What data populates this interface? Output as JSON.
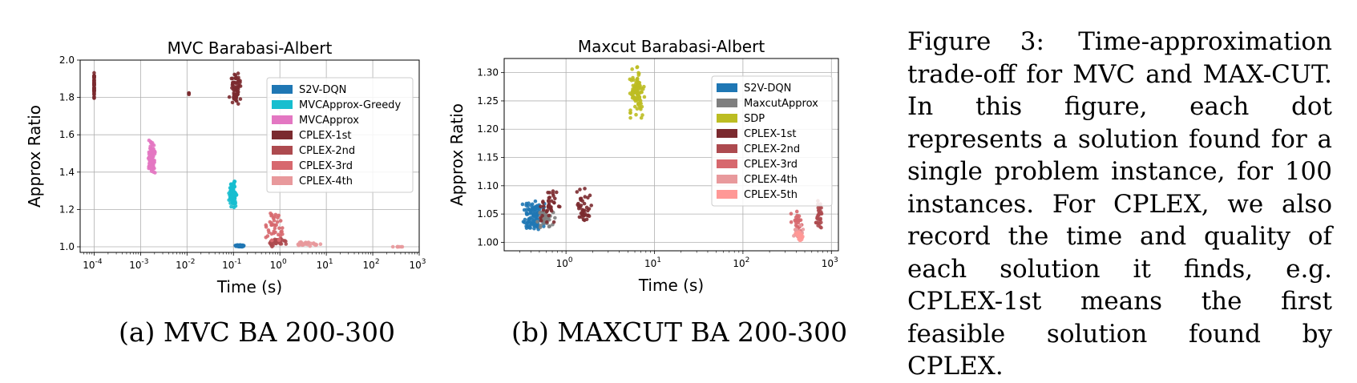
{
  "chart_data": [
    {
      "type": "scatter",
      "title": "MVC Barabasi-Albert",
      "xlabel": "Time (s)",
      "ylabel": "Approx Ratio",
      "xscale": "log",
      "xlim": [
        5e-05,
        1000
      ],
      "ylim": [
        0.97,
        2.0
      ],
      "xticks": [
        0.0001,
        0.001,
        0.01,
        0.1,
        1,
        10,
        100,
        1000
      ],
      "xtick_exponents": [
        "-4",
        "-3",
        "-2",
        "-1",
        "0",
        "1",
        "2",
        "3"
      ],
      "yticks": [
        "1.0",
        "1.2",
        "1.4",
        "1.6",
        "1.8",
        "2.0"
      ],
      "grid": true,
      "legend_position": "upper-right",
      "series": [
        {
          "name": "S2V-DQN",
          "color": "#1f77b4",
          "clusters": [
            {
              "x": [
                0.11,
                0.17
              ],
              "y": [
                1.0,
                1.01
              ],
              "n": 100
            }
          ]
        },
        {
          "name": "MVCApprox-Greedy",
          "color": "#17becf",
          "clusters": [
            {
              "x": [
                0.08,
                0.12
              ],
              "y": [
                1.21,
                1.35
              ],
              "n": 100
            }
          ]
        },
        {
          "name": "MVCApprox",
          "color": "#e377c2",
          "clusters": [
            {
              "x": [
                0.0014,
                0.0021
              ],
              "y": [
                1.38,
                1.57
              ],
              "n": 100
            }
          ]
        },
        {
          "name": "CPLEX-1st",
          "color": "#7b2a2f",
          "clusters": [
            {
              "x": [
                0.0001,
                0.0001
              ],
              "y": [
                1.76,
                1.95
              ],
              "n": 60
            },
            {
              "x": [
                0.011,
                0.011
              ],
              "y": [
                1.8,
                1.84
              ],
              "n": 3
            },
            {
              "x": [
                0.08,
                0.16
              ],
              "y": [
                1.75,
                1.95
              ],
              "n": 60
            }
          ]
        },
        {
          "name": "CPLEX-2nd",
          "color": "#ad4a4f",
          "clusters": [
            {
              "x": [
                0.5,
                1.4
              ],
              "y": [
                1.0,
                1.05
              ],
              "n": 40
            }
          ]
        },
        {
          "name": "CPLEX-3rd",
          "color": "#d7686e",
          "clusters": [
            {
              "x": [
                0.5,
                1.2
              ],
              "y": [
                1.0,
                1.22
              ],
              "n": 40
            }
          ]
        },
        {
          "name": "CPLEX-4th",
          "color": "#e8999c",
          "clusters": [
            {
              "x": [
                2.0,
                8.0
              ],
              "y": [
                1.0,
                1.03
              ],
              "n": 30
            },
            {
              "x": [
                250,
                600
              ],
              "y": [
                1.0,
                1.0
              ],
              "n": 8
            }
          ]
        }
      ]
    },
    {
      "type": "scatter",
      "title": "Maxcut Barabasi-Albert",
      "xlabel": "Time (s)",
      "ylabel": "Approx Ratio",
      "xscale": "log",
      "xlim": [
        0.2,
        1200
      ],
      "ylim": [
        0.985,
        1.325
      ],
      "xticks": [
        1,
        10,
        100,
        1000
      ],
      "xtick_exponents": [
        "0",
        "1",
        "2",
        "3"
      ],
      "yticks": [
        "1.00",
        "1.05",
        "1.10",
        "1.15",
        "1.20",
        "1.25",
        "1.30"
      ],
      "grid": true,
      "legend_position": "upper-right",
      "series": [
        {
          "name": "S2V-DQN",
          "color": "#1f77b4",
          "clusters": [
            {
              "x": [
                0.3,
                0.65
              ],
              "y": [
                1.01,
                1.08
              ],
              "n": 100
            }
          ]
        },
        {
          "name": "MaxcutApprox",
          "color": "#7f7f7f",
          "clusters": [
            {
              "x": [
                0.45,
                0.75
              ],
              "y": [
                1.02,
                1.07
              ],
              "n": 40
            }
          ]
        },
        {
          "name": "SDP",
          "color": "#bcbd22",
          "clusters": [
            {
              "x": [
                5.0,
                8.0
              ],
              "y": [
                1.22,
                1.31
              ],
              "n": 100
            }
          ]
        },
        {
          "name": "CPLEX-1st",
          "color": "#7b2a2f",
          "clusters": [
            {
              "x": [
                0.5,
                0.9
              ],
              "y": [
                1.03,
                1.1
              ],
              "n": 40
            },
            {
              "x": [
                1.3,
                2.0
              ],
              "y": [
                1.03,
                1.1
              ],
              "n": 40
            }
          ]
        },
        {
          "name": "CPLEX-2nd",
          "color": "#ad4a4f",
          "clusters": [
            {
              "x": [
                650,
                800
              ],
              "y": [
                1.02,
                1.08
              ],
              "n": 30
            }
          ]
        },
        {
          "name": "CPLEX-3rd",
          "color": "#d7686e",
          "clusters": [
            {
              "x": [
                350,
                500
              ],
              "y": [
                1.0,
                1.06
              ],
              "n": 30
            }
          ]
        },
        {
          "name": "CPLEX-4th",
          "color": "#e8999c",
          "clusters": [
            {
              "x": [
                350,
                500
              ],
              "y": [
                1.0,
                1.03
              ],
              "n": 25
            }
          ]
        },
        {
          "name": "CPLEX-5th",
          "color": "#ff9896",
          "clusters": [
            {
              "x": [
                380,
                480
              ],
              "y": [
                1.0,
                1.02
              ],
              "n": 20
            }
          ]
        }
      ]
    }
  ],
  "subcaptions": {
    "a": "(a) MVC BA 200-300",
    "b": "(b) MAXCUT BA 200-300"
  },
  "figure_caption": {
    "label": "Figure 3:",
    "text": "Time-approximation trade-off for MVC and MAX-CUT. In this figure, each dot represents a solution found for a single problem instance, for 100 instances. For CPLEX, we also record the time and quality of each solution it finds, e.g. CPLEX-1st means the first feasible solution found by CPLEX."
  }
}
